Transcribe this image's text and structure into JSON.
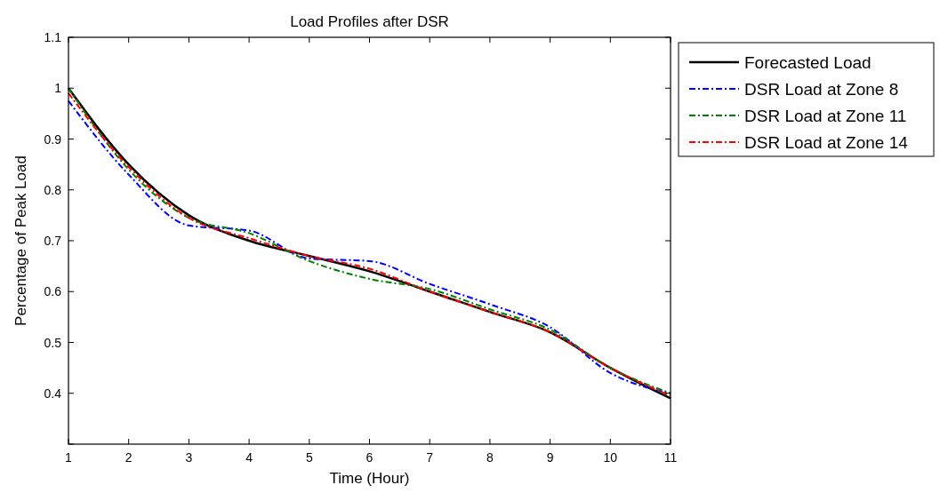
{
  "chart_data": {
    "type": "line",
    "title": "Load Profiles after DSR",
    "xlabel": "Time (Hour)",
    "ylabel": "Percentage of Peak Load",
    "x": [
      1,
      2,
      3,
      4,
      5,
      6,
      7,
      8,
      9,
      10,
      11
    ],
    "xlim": [
      1,
      11
    ],
    "xticks": [
      1,
      2,
      3,
      4,
      5,
      6,
      7,
      8,
      9,
      10,
      11
    ],
    "ylim": [
      0.3,
      1.1
    ],
    "yticks": [
      {
        "value": 0.3,
        "label": null
      },
      0.4,
      0.5,
      0.6,
      0.7,
      0.8,
      0.9,
      1,
      1.1
    ],
    "legend": "top right",
    "grid": false,
    "series": [
      {
        "name": "Forecasted Load",
        "color": "#000000",
        "line_style": "solid",
        "values": [
          1.0,
          0.85,
          0.75,
          0.7,
          0.67,
          0.64,
          0.6,
          0.56,
          0.52,
          0.45,
          0.39
        ]
      },
      {
        "name": "DSR Load at Zone 8",
        "color": "#0000ff",
        "line_style": "dashed",
        "values": [
          0.975,
          0.83,
          0.73,
          0.72,
          0.665,
          0.66,
          0.615,
          0.575,
          0.53,
          0.44,
          0.4
        ]
      },
      {
        "name": "DSR Load at Zone 11",
        "color": "#008000",
        "line_style": "dashed",
        "values": [
          1.0,
          0.84,
          0.745,
          0.715,
          0.66,
          0.625,
          0.605,
          0.565,
          0.525,
          0.45,
          0.4
        ]
      },
      {
        "name": "DSR Load at Zone 14",
        "color": "#ff0000",
        "line_style": "dashed",
        "values": [
          0.99,
          0.845,
          0.745,
          0.705,
          0.67,
          0.645,
          0.6,
          0.56,
          0.52,
          0.45,
          0.395
        ]
      }
    ]
  }
}
